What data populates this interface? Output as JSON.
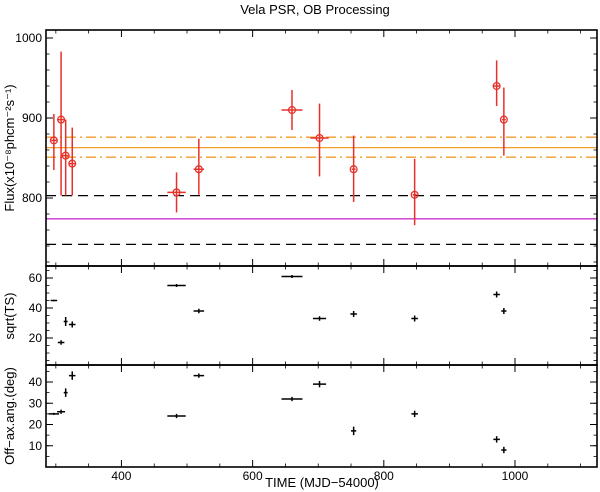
{
  "chart_data": {
    "type": "scatter",
    "title": "Vela PSR, OB Processing",
    "xlabel": "TIME (MJD−54000)",
    "xlim": [
      285,
      1125
    ],
    "x_ticks": [
      400,
      600,
      800,
      1000
    ],
    "panels": [
      {
        "id": "flux",
        "ylabel": "Flux(x10⁻⁸phcm⁻²s⁻¹)",
        "ylim": [
          715,
          1010
        ],
        "y_ticks": [
          800,
          900,
          1000
        ],
        "points": [
          {
            "x": 297,
            "xerr": 4,
            "y": 872,
            "yerr_lo": 37,
            "yerr_hi": 33
          },
          {
            "x": 308,
            "xerr": 6,
            "y": 898,
            "yerr_lo": 95,
            "yerr_hi": 85
          },
          {
            "x": 315,
            "xerr": 4,
            "y": 853,
            "yerr_lo": 50,
            "yerr_hi": 45
          },
          {
            "x": 325,
            "xerr": 5,
            "y": 843,
            "yerr_lo": 40,
            "yerr_hi": 45
          },
          {
            "x": 484,
            "xerr": 14,
            "y": 807,
            "yerr_lo": 25,
            "yerr_hi": 25
          },
          {
            "x": 518,
            "xerr": 8,
            "y": 836,
            "yerr_lo": 32,
            "yerr_hi": 38
          },
          {
            "x": 660,
            "xerr": 16,
            "y": 910,
            "yerr_lo": 25,
            "yerr_hi": 25
          },
          {
            "x": 702,
            "xerr": 14,
            "y": 875,
            "yerr_lo": 48,
            "yerr_hi": 43
          },
          {
            "x": 754,
            "xerr": 3,
            "y": 836,
            "yerr_lo": 41,
            "yerr_hi": 42
          },
          {
            "x": 847,
            "xerr": 3,
            "y": 804,
            "yerr_lo": 38,
            "yerr_hi": 45
          },
          {
            "x": 972,
            "xerr": 5,
            "y": 940,
            "yerr_lo": 25,
            "yerr_hi": 32
          },
          {
            "x": 983,
            "xerr": 3,
            "y": 898,
            "yerr_lo": 45,
            "yerr_hi": 40
          }
        ],
        "reference_lines": [
          {
            "name": "mean",
            "y": 863,
            "style": "solid",
            "color": "#f39c2b"
          },
          {
            "name": "mean-upper-band",
            "y": 876,
            "style": "dashdot",
            "color": "#f39c2b"
          },
          {
            "name": "mean-lower-band",
            "y": 851,
            "style": "dashdot",
            "color": "#f39c2b"
          },
          {
            "name": "upper-limit",
            "y": 803,
            "style": "dashed",
            "color": "#000000"
          },
          {
            "name": "magenta-level",
            "y": 774,
            "style": "solid",
            "color": "#cc33cc"
          },
          {
            "name": "lower-limit",
            "y": 742,
            "style": "dashed",
            "color": "#000000"
          }
        ]
      },
      {
        "id": "sqrt-ts",
        "ylabel": "sqrt(TS)",
        "ylim": [
          2,
          68
        ],
        "y_ticks": [
          20,
          40,
          60
        ],
        "points": [
          {
            "x": 297,
            "xerr": 5,
            "y": 45,
            "yerr": 0.5
          },
          {
            "x": 308,
            "xerr": 5,
            "y": 17,
            "yerr": 1.5
          },
          {
            "x": 315,
            "xerr": 3,
            "y": 31,
            "yerr": 3
          },
          {
            "x": 325,
            "xerr": 5,
            "y": 29,
            "yerr": 2
          },
          {
            "x": 484,
            "xerr": 14,
            "y": 55,
            "yerr": 1
          },
          {
            "x": 518,
            "xerr": 8,
            "y": 38,
            "yerr": 1.5
          },
          {
            "x": 660,
            "xerr": 16,
            "y": 61,
            "yerr": 1
          },
          {
            "x": 702,
            "xerr": 10,
            "y": 33,
            "yerr": 1.5
          },
          {
            "x": 754,
            "xerr": 5,
            "y": 36,
            "yerr": 2
          },
          {
            "x": 847,
            "xerr": 5,
            "y": 33,
            "yerr": 2
          },
          {
            "x": 972,
            "xerr": 5,
            "y": 49,
            "yerr": 2
          },
          {
            "x": 983,
            "xerr": 4,
            "y": 38,
            "yerr": 2
          }
        ]
      },
      {
        "id": "off-axis-angle",
        "ylabel": "Off−ax.ang.(deg)",
        "ylim": [
          0,
          48
        ],
        "y_ticks": [
          10,
          20,
          30,
          40
        ],
        "points": [
          {
            "x": 297,
            "xerr": 8,
            "y": 25,
            "yerr": 0.5
          },
          {
            "x": 308,
            "xerr": 6,
            "y": 26,
            "yerr": 1
          },
          {
            "x": 315,
            "xerr": 3,
            "y": 35,
            "yerr": 2
          },
          {
            "x": 325,
            "xerr": 5,
            "y": 43,
            "yerr": 2
          },
          {
            "x": 484,
            "xerr": 14,
            "y": 24,
            "yerr": 1
          },
          {
            "x": 518,
            "xerr": 8,
            "y": 43,
            "yerr": 1
          },
          {
            "x": 660,
            "xerr": 16,
            "y": 32,
            "yerr": 1
          },
          {
            "x": 702,
            "xerr": 10,
            "y": 39,
            "yerr": 1.5
          },
          {
            "x": 754,
            "xerr": 4,
            "y": 17,
            "yerr": 2
          },
          {
            "x": 847,
            "xerr": 5,
            "y": 25,
            "yerr": 1.5
          },
          {
            "x": 972,
            "xerr": 5,
            "y": 13,
            "yerr": 1.5
          },
          {
            "x": 983,
            "xerr": 4,
            "y": 8,
            "yerr": 1.5
          }
        ]
      }
    ]
  },
  "colors": {
    "flux_marker": "#e8302a",
    "axis": "#000000",
    "points_secondary": "#000000"
  }
}
